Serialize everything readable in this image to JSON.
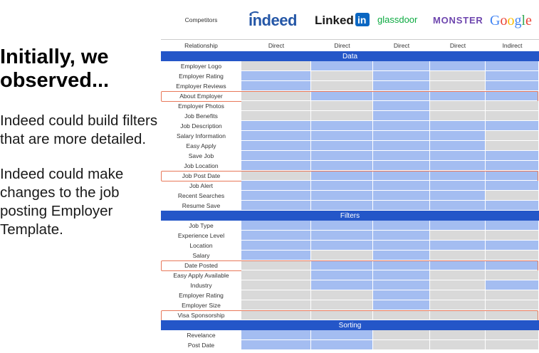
{
  "slide": {
    "heading": "Initially, we observed...",
    "point_1": "Indeed could build filters that are more detailed.",
    "point_2": "Indeed could make changes to the job posting Employer Template."
  },
  "colors": {
    "yes": "#a4bdf1",
    "no": "#d9d9d9",
    "section": "#2456c8",
    "highlight": "#e8785a"
  },
  "table": {
    "competitors_label": "Competitors",
    "relationship_label": "Relationship",
    "competitors": [
      {
        "name": "indeed",
        "logo": "indeed-logo",
        "relationship": "Direct"
      },
      {
        "name": "LinkedIn",
        "logo": "linkedin-logo",
        "relationship": "Direct"
      },
      {
        "name": "glassdoor",
        "logo": "glassdoor-logo",
        "relationship": "Direct"
      },
      {
        "name": "MONSTER",
        "logo": "monster-logo",
        "relationship": "Direct"
      },
      {
        "name": "Google",
        "logo": "google-logo",
        "relationship": "Indirect"
      }
    ],
    "sections": [
      {
        "title": "Data",
        "rows": [
          {
            "feature": "Employer Logo",
            "values": [
              0,
              1,
              1,
              1,
              1
            ]
          },
          {
            "feature": "Employer Rating",
            "values": [
              1,
              0,
              1,
              0,
              1
            ]
          },
          {
            "feature": "Employer Reviews",
            "values": [
              1,
              0,
              1,
              0,
              1
            ]
          },
          {
            "feature": "About Employer",
            "values": [
              0,
              1,
              1,
              1,
              1
            ],
            "highlight": true
          },
          {
            "feature": "Employer Photos",
            "values": [
              0,
              0,
              1,
              0,
              0
            ]
          },
          {
            "feature": "Job Benefits",
            "values": [
              0,
              0,
              1,
              0,
              0
            ]
          },
          {
            "feature": "Job Description",
            "values": [
              1,
              1,
              1,
              1,
              1
            ]
          },
          {
            "feature": "Salary Information",
            "values": [
              1,
              1,
              1,
              1,
              0
            ]
          },
          {
            "feature": "Easy Apply",
            "values": [
              1,
              1,
              1,
              1,
              0
            ]
          },
          {
            "feature": "Save Job",
            "values": [
              1,
              1,
              1,
              1,
              1
            ]
          },
          {
            "feature": "Job Location",
            "values": [
              1,
              1,
              1,
              1,
              1
            ]
          },
          {
            "feature": "Job Post Date",
            "values": [
              0,
              1,
              1,
              1,
              1
            ],
            "highlight": true
          },
          {
            "feature": "Job Alert",
            "values": [
              1,
              1,
              1,
              1,
              1
            ]
          },
          {
            "feature": "Recent Searches",
            "values": [
              1,
              1,
              1,
              1,
              0
            ]
          },
          {
            "feature": "Resume Save",
            "values": [
              1,
              1,
              1,
              1,
              1
            ]
          }
        ]
      },
      {
        "title": "Filters",
        "rows": [
          {
            "feature": "Job Type",
            "values": [
              1,
              1,
              1,
              1,
              1
            ]
          },
          {
            "feature": "Experience Level",
            "values": [
              1,
              1,
              1,
              0,
              0
            ]
          },
          {
            "feature": "Location",
            "values": [
              1,
              1,
              1,
              1,
              1
            ]
          },
          {
            "feature": "Salary",
            "values": [
              1,
              0,
              1,
              0,
              0
            ]
          },
          {
            "feature": "Date Posted",
            "values": [
              0,
              1,
              1,
              1,
              1
            ],
            "highlight": true
          },
          {
            "feature": "Easy Apply Available",
            "values": [
              0,
              1,
              1,
              0,
              0
            ]
          },
          {
            "feature": "Industry",
            "values": [
              0,
              1,
              1,
              0,
              1
            ]
          },
          {
            "feature": "Employer Rating",
            "values": [
              0,
              0,
              1,
              0,
              0
            ]
          },
          {
            "feature": "Employer Size",
            "values": [
              0,
              0,
              1,
              0,
              0
            ]
          },
          {
            "feature": "Visa Sponsorship",
            "values": [
              0,
              0,
              0,
              0,
              0
            ],
            "highlight": true
          }
        ]
      },
      {
        "title": "Sorting",
        "rows": [
          {
            "feature": "Revelance",
            "values": [
              1,
              1,
              0,
              0,
              0
            ]
          },
          {
            "feature": "Post Date",
            "values": [
              1,
              1,
              0,
              0,
              0
            ]
          }
        ]
      }
    ]
  }
}
